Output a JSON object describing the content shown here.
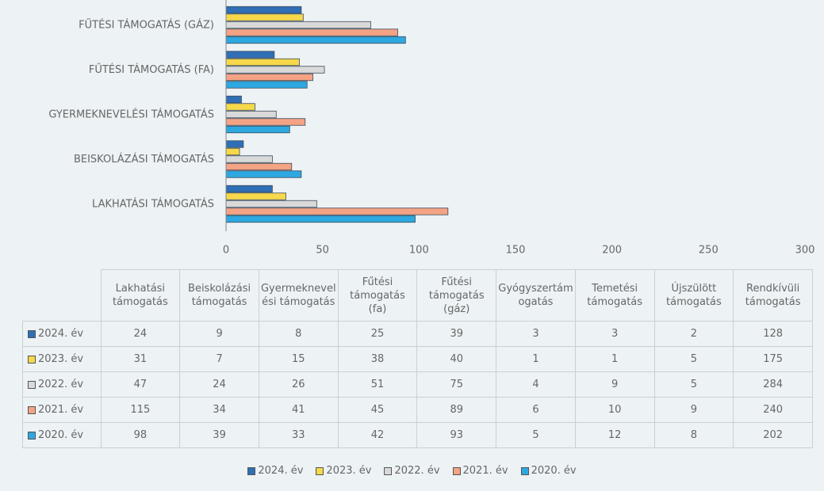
{
  "chart_data": {
    "type": "barh",
    "bar_labels": [
      "LAKHATÁSI TÁMOGATÁS",
      "BEISKOLÁZÁSI TÁMOGATÁS",
      "GYERMEKNEVELÉSI TÁMOGATÁS",
      "FŰTÉSI TÁMOGATÁS (FA)",
      "FŰTÉSI TÁMOGATÁS (GÁZ)"
    ],
    "categories": [
      "Lakhatási támogatás",
      "Beiskolázási támogatás",
      "Gyermeknevelési támogatás",
      "Fűtési támogatás (fa)",
      "Fűtési támogatás (gáz)",
      "Gyógyszertámogatás",
      "Temetési támogatás",
      "Újszülött támogatás",
      "Rendkívüli támogatás"
    ],
    "series": [
      {
        "name": "2024. év",
        "color": "#2f6fb6",
        "values": [
          24,
          9,
          8,
          25,
          39,
          3,
          3,
          2,
          128
        ]
      },
      {
        "name": "2023. év",
        "color": "#f6d84a",
        "values": [
          31,
          7,
          15,
          38,
          40,
          1,
          1,
          5,
          175
        ]
      },
      {
        "name": "2022. év",
        "color": "#d9d9d9",
        "values": [
          47,
          24,
          26,
          51,
          75,
          4,
          9,
          5,
          284
        ]
      },
      {
        "name": "2021. év",
        "color": "#f4a384",
        "values": [
          115,
          34,
          41,
          45,
          89,
          6,
          10,
          9,
          240
        ]
      },
      {
        "name": "2020. év",
        "color": "#2ea8e0",
        "values": [
          98,
          39,
          33,
          42,
          93,
          5,
          12,
          8,
          202
        ]
      }
    ],
    "xlim": [
      0,
      300
    ],
    "xticks": [
      0,
      50,
      100,
      150,
      200,
      250,
      300
    ],
    "grid": false
  }
}
